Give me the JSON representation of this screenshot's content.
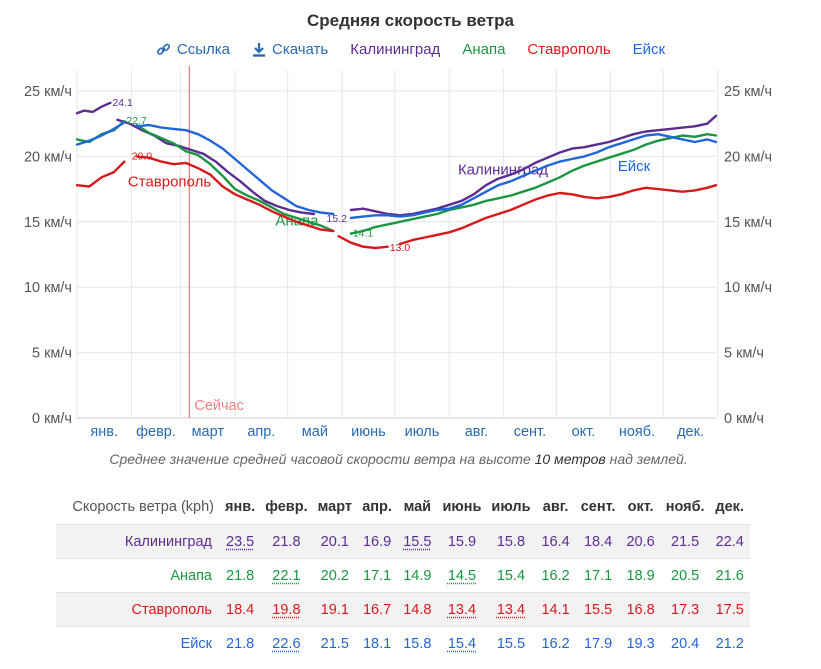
{
  "header": {
    "title": "Средняя скорость ветра",
    "link_label": "Ссылка",
    "download_label": "Скачать"
  },
  "colors": {
    "Калининград": "#5c2d91",
    "Анапа": "#1a9641",
    "Ставрополь": "#d7191c",
    "Ейск": "#2166d9",
    "now_line": "#f08080",
    "link": "#2a6ab0"
  },
  "caption": {
    "prefix": "Среднее значение средней часовой скорости ветра на высоте",
    "emph": "10 метров",
    "suffix": "над землей."
  },
  "chart_data": {
    "type": "line",
    "x_months": [
      "янв.",
      "февр.",
      "март",
      "апр.",
      "май",
      "июнь",
      "июль",
      "авг.",
      "сент.",
      "окт.",
      "нояб.",
      "дек."
    ],
    "y_ticks": [
      "0 км/ч",
      "5 км/ч",
      "10 км/ч",
      "15 км/ч",
      "20 км/ч",
      "25 км/ч"
    ],
    "ylim": [
      0,
      26
    ],
    "grid": true,
    "now_label": "Сейчас",
    "now_day": 65,
    "series": [
      {
        "name": "Калининград",
        "x": [
          1,
          5,
          10,
          15,
          20,
          24,
          31,
          38,
          45,
          52,
          59,
          66,
          73,
          80,
          87,
          94,
          101,
          108,
          115,
          122,
          129,
          136,
          143,
          150,
          157,
          164,
          171,
          178,
          185,
          192,
          199,
          206,
          213,
          220,
          227,
          234,
          241,
          248,
          255,
          262,
          269,
          276,
          283,
          290,
          297,
          304,
          311,
          318,
          325,
          332,
          339,
          346,
          353,
          360,
          365
        ],
        "y": [
          23.3,
          23.5,
          23.4,
          23.8,
          24.1,
          22.8,
          22.5,
          22.0,
          21.6,
          21.0,
          20.8,
          20.5,
          20.2,
          19.6,
          18.8,
          18.1,
          17.3,
          16.6,
          16.2,
          15.9,
          15.7,
          15.6,
          15.5,
          15.8,
          15.9,
          16.0,
          15.8,
          15.6,
          15.5,
          15.6,
          15.8,
          16.0,
          16.3,
          16.6,
          17.1,
          17.8,
          18.3,
          18.6,
          19.0,
          19.5,
          19.9,
          20.3,
          20.6,
          20.7,
          20.9,
          21.1,
          21.4,
          21.7,
          21.9,
          22.0,
          22.1,
          22.2,
          22.3,
          22.5,
          23.1
        ],
        "segments": [
          [
            1,
            20
          ],
          [
            24,
            142
          ],
          [
            157,
            365
          ]
        ],
        "label_pos": "Калининград",
        "label_day": 218,
        "label_y": 18.6,
        "end_labels": [
          {
            "x": 20,
            "y": 24.1,
            "text": "24.1"
          },
          {
            "x": 142,
            "y": 15.2,
            "text": "15.2"
          }
        ]
      },
      {
        "name": "Анапа",
        "x": [
          1,
          8,
          15,
          22,
          28,
          35,
          42,
          49,
          56,
          63,
          70,
          77,
          84,
          91,
          98,
          105,
          112,
          119,
          126,
          133,
          140,
          147,
          157,
          164,
          171,
          178,
          185,
          192,
          199,
          206,
          213,
          220,
          227,
          234,
          241,
          248,
          255,
          262,
          269,
          276,
          283,
          290,
          297,
          304,
          311,
          318,
          325,
          332,
          339,
          346,
          353,
          360,
          365
        ],
        "y": [
          21.3,
          21.1,
          21.7,
          22.0,
          22.7,
          22.4,
          21.8,
          21.4,
          21.0,
          20.4,
          20.1,
          19.4,
          18.5,
          17.5,
          17.0,
          16.6,
          16.1,
          15.6,
          15.3,
          15.0,
          14.7,
          14.3,
          14.1,
          14.3,
          14.6,
          14.8,
          15.0,
          15.2,
          15.4,
          15.6,
          15.9,
          16.1,
          16.3,
          16.6,
          16.8,
          17.0,
          17.3,
          17.6,
          18.0,
          18.4,
          18.9,
          19.3,
          19.6,
          19.9,
          20.2,
          20.5,
          20.9,
          21.2,
          21.4,
          21.6,
          21.5,
          21.7,
          21.6
        ],
        "segments": [
          [
            1,
            28
          ],
          [
            31,
            147
          ],
          [
            157,
            365
          ]
        ],
        "label_pos": "Анапа",
        "label_day": 114,
        "label_y": 14.7,
        "end_labels": [
          {
            "x": 28,
            "y": 22.7,
            "text": "22.7"
          },
          {
            "x": 157,
            "y": 14.1,
            "text": "14.1"
          }
        ]
      },
      {
        "name": "Ставрополь",
        "x": [
          1,
          8,
          15,
          22,
          28,
          35,
          42,
          49,
          56,
          63,
          70,
          77,
          84,
          91,
          98,
          105,
          112,
          119,
          126,
          133,
          140,
          147,
          150,
          157,
          164,
          171,
          178,
          185,
          192,
          199,
          206,
          213,
          220,
          227,
          234,
          241,
          248,
          255,
          262,
          269,
          276,
          283,
          290,
          297,
          304,
          311,
          318,
          325,
          332,
          339,
          346,
          353,
          360,
          365
        ],
        "y": [
          17.8,
          17.7,
          18.4,
          18.8,
          19.6,
          20.0,
          19.9,
          19.6,
          19.4,
          19.5,
          19.1,
          18.6,
          17.7,
          17.1,
          16.7,
          16.3,
          15.8,
          15.4,
          15.0,
          14.7,
          14.4,
          14.3,
          13.9,
          13.4,
          13.1,
          13.0,
          13.1,
          13.3,
          13.6,
          13.8,
          14.0,
          14.2,
          14.5,
          14.9,
          15.3,
          15.6,
          15.9,
          16.3,
          16.7,
          17.0,
          17.2,
          17.1,
          16.9,
          16.8,
          16.9,
          17.1,
          17.4,
          17.6,
          17.5,
          17.4,
          17.3,
          17.4,
          17.6,
          17.8
        ],
        "segments": [
          [
            1,
            28
          ],
          [
            31,
            147
          ],
          [
            150,
            178
          ],
          [
            182,
            365
          ]
        ],
        "label_pos": "Ставрополь",
        "label_day": 30,
        "label_y": 17.7,
        "end_labels": [
          {
            "x": 31,
            "y": 20.0,
            "text": "20.0"
          },
          {
            "x": 178,
            "y": 13.0,
            "text": "13.0"
          }
        ]
      },
      {
        "name": "Ейск",
        "x": [
          1,
          8,
          15,
          22,
          28,
          35,
          42,
          49,
          56,
          63,
          70,
          77,
          84,
          91,
          98,
          105,
          112,
          119,
          126,
          133,
          140,
          147,
          157,
          164,
          171,
          178,
          185,
          192,
          199,
          206,
          213,
          220,
          227,
          234,
          241,
          248,
          255,
          262,
          269,
          276,
          283,
          290,
          297,
          304,
          311,
          318,
          325,
          332,
          339,
          346,
          353,
          360,
          365
        ],
        "y": [
          20.9,
          21.2,
          21.6,
          22.1,
          22.6,
          22.3,
          22.4,
          22.2,
          22.1,
          22.0,
          21.7,
          21.2,
          20.6,
          19.8,
          19.0,
          18.2,
          17.4,
          16.8,
          16.2,
          15.9,
          15.7,
          15.6,
          15.3,
          15.4,
          15.5,
          15.5,
          15.4,
          15.5,
          15.7,
          15.9,
          16.0,
          16.3,
          16.8,
          17.3,
          17.8,
          18.1,
          18.5,
          18.9,
          19.3,
          19.6,
          19.8,
          20.0,
          20.3,
          20.7,
          21.0,
          21.3,
          21.6,
          21.7,
          21.5,
          21.3,
          21.1,
          21.3,
          21.1
        ],
        "segments": [
          [
            1,
            28
          ],
          [
            31,
            147
          ],
          [
            157,
            365
          ]
        ],
        "label_pos": "Ейск",
        "label_day": 309,
        "label_y": 18.9,
        "end_labels": []
      }
    ]
  },
  "table": {
    "corner": "Скорость ветра (kph)",
    "months": [
      "янв.",
      "февр.",
      "март",
      "апр.",
      "май",
      "июнь",
      "июль",
      "авг.",
      "сент.",
      "окт.",
      "нояб.",
      "дек."
    ],
    "rows": [
      {
        "city": "Калининград",
        "values": [
          "23.5",
          "21.8",
          "20.1",
          "16.9",
          "15.5",
          "15.9",
          "15.8",
          "16.4",
          "18.4",
          "20.6",
          "21.5",
          "22.4"
        ],
        "marked": [
          0,
          4
        ]
      },
      {
        "city": "Анапа",
        "values": [
          "21.8",
          "22.1",
          "20.2",
          "17.1",
          "14.9",
          "14.5",
          "15.4",
          "16.2",
          "17.1",
          "18.9",
          "20.5",
          "21.6"
        ],
        "marked": [
          1,
          5
        ]
      },
      {
        "city": "Ставрополь",
        "values": [
          "18.4",
          "19.8",
          "19.1",
          "16.7",
          "14.8",
          "13.4",
          "13.4",
          "14.1",
          "15.5",
          "16.8",
          "17.3",
          "17.5"
        ],
        "marked": [
          1,
          5,
          6
        ]
      },
      {
        "city": "Ейск",
        "values": [
          "21.8",
          "22.6",
          "21.5",
          "18.1",
          "15.8",
          "15.4",
          "15.5",
          "16.2",
          "17.9",
          "19.3",
          "20.4",
          "21.2"
        ],
        "marked": [
          1,
          5
        ]
      }
    ]
  }
}
